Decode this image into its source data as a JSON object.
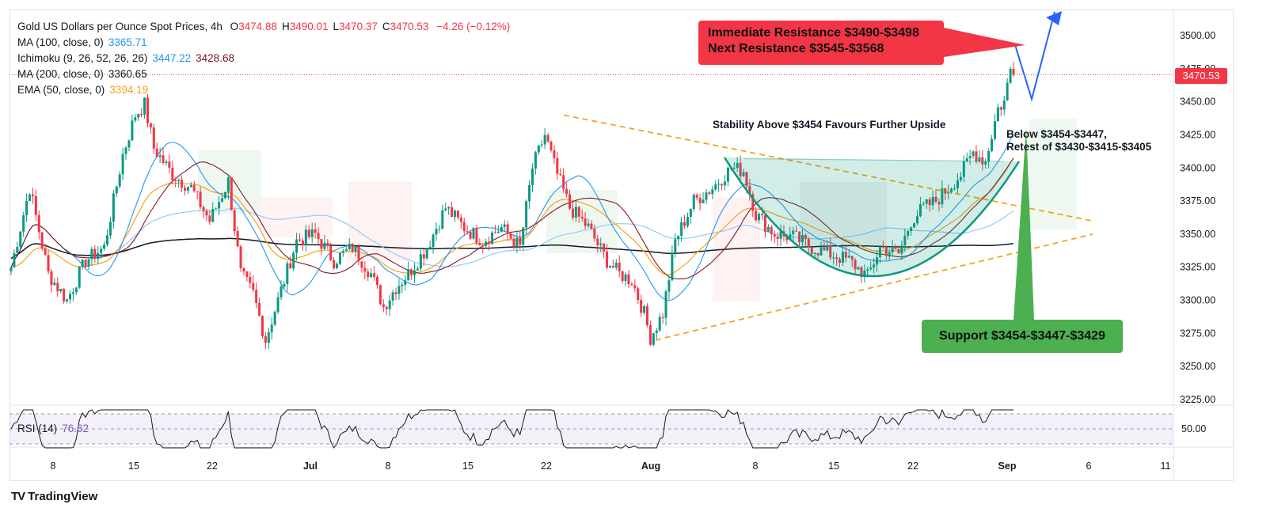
{
  "header": {
    "title": "Gold US Dollars per Ounce Spot Prices, 4h",
    "ohlc": [
      {
        "key": "O",
        "value": "3474.88"
      },
      {
        "key": "H",
        "value": "3490.01"
      },
      {
        "key": "L",
        "value": "3470.37"
      },
      {
        "key": "C",
        "value": "3470.53"
      }
    ],
    "change": "−4.26 (−0.12%)"
  },
  "indicators": [
    {
      "label": "MA (100, close, 0)",
      "values": [
        "3365.71"
      ],
      "colors": [
        "#2196f3"
      ]
    },
    {
      "label": "Ichimoku (9, 26, 52, 26, 26)",
      "values": [
        "3447.22",
        "3428.68"
      ],
      "colors": [
        "#2196f3",
        "#801922"
      ]
    },
    {
      "label": "MA (200, close, 0)",
      "values": [
        "3360.65"
      ],
      "colors": [
        "#131722"
      ]
    },
    {
      "label": "EMA (50, close, 0)",
      "values": [
        "3394.19"
      ],
      "colors": [
        "#f7a21b"
      ]
    }
  ],
  "rsi": {
    "label": "RSI (14)",
    "value": "76.62",
    "ref_level": "50.00"
  },
  "price_tag": "3470.53",
  "annotations": {
    "immediate_resistance": "Immediate Resistance $3490-$3498",
    "next_resistance": "Next Resistance $3545-$3568",
    "stability": "Stability Above $3454 Favours Further Upside",
    "below_line1": "Below $3454-$3447,",
    "below_line2": "Retest of $3430-$3415-$3405",
    "support": "Support $3454-$3447-$3429"
  },
  "branding": {
    "logo_text": "TradingView",
    "logo_mark": "TV"
  },
  "colors": {
    "bull": "#089981",
    "bear": "#f23645",
    "ma100": "#2196f3",
    "ma200": "#131722",
    "ema50": "#f7a21b",
    "base": "#801922",
    "rsi": "#7e57c2",
    "trend": "#f7a21b",
    "cup": "#089981",
    "projection": "#2962ff"
  },
  "chart_data": {
    "type": "candlestick",
    "timeframe": "4h",
    "y_ticks": [
      3225,
      3250,
      3275,
      3300,
      3325,
      3350,
      3375,
      3400,
      3425,
      3450,
      3475,
      3500
    ],
    "y_tick_labels": [
      "3225.00",
      "3250.00",
      "3275.00",
      "3300.00",
      "3325.00",
      "3350.00",
      "3375.00",
      "3400.00",
      "3425.00",
      "3450.00",
      "3475.00",
      "3500.00"
    ],
    "ylim": [
      3218,
      3518
    ],
    "x_ticks": [
      "8",
      "15",
      "22",
      "Jul",
      "8",
      "15",
      "22",
      "Aug",
      "8",
      "15",
      "22",
      "Sep",
      "6",
      "11"
    ],
    "price_path": [
      {
        "i": 0,
        "p": 3325
      },
      {
        "i": 6,
        "p": 3385
      },
      {
        "i": 12,
        "p": 3320
      },
      {
        "i": 18,
        "p": 3300
      },
      {
        "i": 24,
        "p": 3330
      },
      {
        "i": 30,
        "p": 3340
      },
      {
        "i": 36,
        "p": 3410
      },
      {
        "i": 40,
        "p": 3440
      },
      {
        "i": 43,
        "p": 3448
      },
      {
        "i": 46,
        "p": 3415
      },
      {
        "i": 52,
        "p": 3395
      },
      {
        "i": 58,
        "p": 3385
      },
      {
        "i": 64,
        "p": 3360
      },
      {
        "i": 70,
        "p": 3390
      },
      {
        "i": 74,
        "p": 3320
      },
      {
        "i": 78,
        "p": 3305
      },
      {
        "i": 82,
        "p": 3270
      },
      {
        "i": 86,
        "p": 3300
      },
      {
        "i": 92,
        "p": 3345
      },
      {
        "i": 98,
        "p": 3350
      },
      {
        "i": 104,
        "p": 3330
      },
      {
        "i": 110,
        "p": 3340
      },
      {
        "i": 116,
        "p": 3320
      },
      {
        "i": 120,
        "p": 3295
      },
      {
        "i": 124,
        "p": 3310
      },
      {
        "i": 128,
        "p": 3320
      },
      {
        "i": 134,
        "p": 3340
      },
      {
        "i": 140,
        "p": 3370
      },
      {
        "i": 146,
        "p": 3355
      },
      {
        "i": 152,
        "p": 3345
      },
      {
        "i": 158,
        "p": 3355
      },
      {
        "i": 164,
        "p": 3340
      },
      {
        "i": 168,
        "p": 3400
      },
      {
        "i": 172,
        "p": 3425
      },
      {
        "i": 176,
        "p": 3395
      },
      {
        "i": 180,
        "p": 3370
      },
      {
        "i": 186,
        "p": 3355
      },
      {
        "i": 192,
        "p": 3330
      },
      {
        "i": 196,
        "p": 3320
      },
      {
        "i": 200,
        "p": 3315
      },
      {
        "i": 204,
        "p": 3290
      },
      {
        "i": 206,
        "p": 3272
      },
      {
        "i": 210,
        "p": 3290
      },
      {
        "i": 214,
        "p": 3345
      },
      {
        "i": 220,
        "p": 3375
      },
      {
        "i": 226,
        "p": 3385
      },
      {
        "i": 232,
        "p": 3400
      },
      {
        "i": 236,
        "p": 3398
      },
      {
        "i": 240,
        "p": 3365
      },
      {
        "i": 246,
        "p": 3350
      },
      {
        "i": 252,
        "p": 3348
      },
      {
        "i": 258,
        "p": 3340
      },
      {
        "i": 264,
        "p": 3335
      },
      {
        "i": 270,
        "p": 3330
      },
      {
        "i": 276,
        "p": 3318
      },
      {
        "i": 280,
        "p": 3340
      },
      {
        "i": 286,
        "p": 3335
      },
      {
        "i": 290,
        "p": 3360
      },
      {
        "i": 294,
        "p": 3370
      },
      {
        "i": 298,
        "p": 3375
      },
      {
        "i": 302,
        "p": 3385
      },
      {
        "i": 306,
        "p": 3395
      },
      {
        "i": 310,
        "p": 3412
      },
      {
        "i": 314,
        "p": 3405
      },
      {
        "i": 318,
        "p": 3445
      },
      {
        "i": 320,
        "p": 3450
      },
      {
        "i": 322,
        "p": 3475
      },
      {
        "i": 323,
        "p": 3470
      }
    ],
    "candle_count": 324,
    "last": {
      "o": 3474.88,
      "h": 3490.01,
      "l": 3470.37,
      "c": 3470.53
    }
  }
}
